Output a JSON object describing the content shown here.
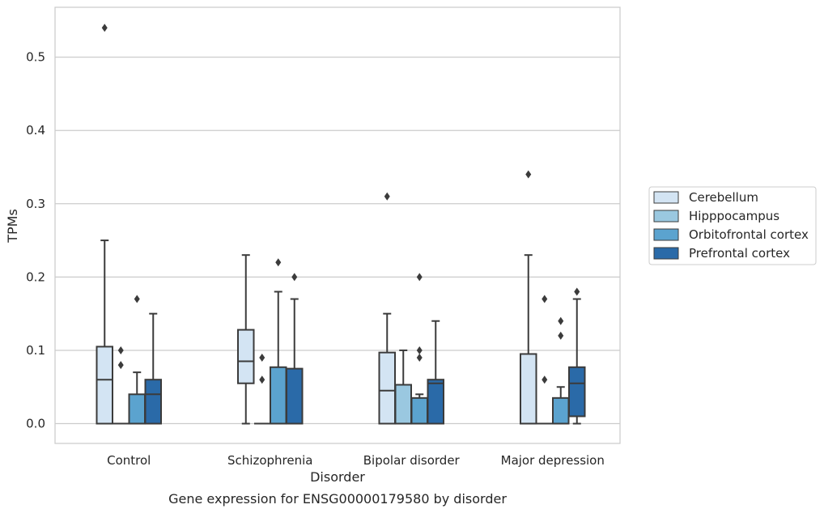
{
  "chart_data": {
    "type": "box",
    "caption": "Gene expression for ENSG00000179580 by disorder",
    "xlabel": "Disorder",
    "ylabel": "TPMs",
    "ylim": [
      -0.027,
      0.568
    ],
    "yticks": [
      0.0,
      0.1,
      0.2,
      0.3,
      0.4,
      0.5
    ],
    "ytick_labels": [
      "0.0",
      "0.1",
      "0.2",
      "0.3",
      "0.4",
      "0.5"
    ],
    "grid": "horizontal",
    "legend_position": "right",
    "categories": [
      "Control",
      "Schizophrenia",
      "Bipolar disorder",
      "Major depression"
    ],
    "series": [
      {
        "name": "Cerebellum",
        "color": "#d3e4f3",
        "boxes": [
          {
            "q1": 0.0,
            "median": 0.06,
            "q3": 0.105,
            "whisker_low": 0.0,
            "whisker_high": 0.25,
            "outliers": [
              0.54
            ]
          },
          {
            "q1": 0.055,
            "median": 0.085,
            "q3": 0.128,
            "whisker_low": 0.0,
            "whisker_high": 0.23,
            "outliers": []
          },
          {
            "q1": 0.0,
            "median": 0.045,
            "q3": 0.097,
            "whisker_low": 0.0,
            "whisker_high": 0.15,
            "outliers": [
              0.31
            ]
          },
          {
            "q1": 0.0,
            "median": 0.0,
            "q3": 0.095,
            "whisker_low": 0.0,
            "whisker_high": 0.23,
            "outliers": [
              0.34
            ]
          }
        ]
      },
      {
        "name": "Hipppocampus",
        "color": "#9ac8e0",
        "boxes": [
          {
            "q1": 0.0,
            "median": 0.0,
            "q3": 0.0,
            "whisker_low": 0.0,
            "whisker_high": 0.0,
            "outliers": [
              0.08,
              0.1
            ]
          },
          {
            "q1": 0.0,
            "median": 0.0,
            "q3": 0.0,
            "whisker_low": 0.0,
            "whisker_high": 0.0,
            "outliers": [
              0.06,
              0.09
            ]
          },
          {
            "q1": 0.0,
            "median": 0.0,
            "q3": 0.053,
            "whisker_low": 0.0,
            "whisker_high": 0.1,
            "outliers": []
          },
          {
            "q1": 0.0,
            "median": 0.0,
            "q3": 0.0,
            "whisker_low": 0.0,
            "whisker_high": 0.0,
            "outliers": [
              0.06,
              0.17
            ]
          }
        ]
      },
      {
        "name": "Orbitofrontal cortex",
        "color": "#5ba3cf",
        "boxes": [
          {
            "q1": 0.0,
            "median": 0.0,
            "q3": 0.04,
            "whisker_low": 0.0,
            "whisker_high": 0.07,
            "outliers": [
              0.17
            ]
          },
          {
            "q1": 0.0,
            "median": 0.0,
            "q3": 0.077,
            "whisker_low": 0.0,
            "whisker_high": 0.18,
            "outliers": [
              0.22
            ]
          },
          {
            "q1": 0.0,
            "median": 0.0,
            "q3": 0.035,
            "whisker_low": 0.0,
            "whisker_high": 0.04,
            "outliers": [
              0.09,
              0.1,
              0.2
            ]
          },
          {
            "q1": 0.0,
            "median": 0.0,
            "q3": 0.035,
            "whisker_low": 0.0,
            "whisker_high": 0.05,
            "outliers": [
              0.12,
              0.14
            ]
          }
        ]
      },
      {
        "name": "Prefrontal cortex",
        "color": "#2a6aa8",
        "boxes": [
          {
            "q1": 0.0,
            "median": 0.04,
            "q3": 0.06,
            "whisker_low": 0.0,
            "whisker_high": 0.15,
            "outliers": []
          },
          {
            "q1": 0.0,
            "median": 0.0,
            "q3": 0.075,
            "whisker_low": 0.0,
            "whisker_high": 0.17,
            "outliers": [
              0.2
            ]
          },
          {
            "q1": 0.0,
            "median": 0.055,
            "q3": 0.06,
            "whisker_low": 0.0,
            "whisker_high": 0.14,
            "outliers": []
          },
          {
            "q1": 0.01,
            "median": 0.055,
            "q3": 0.077,
            "whisker_low": 0.0,
            "whisker_high": 0.17,
            "outliers": [
              0.18
            ]
          }
        ]
      }
    ]
  }
}
